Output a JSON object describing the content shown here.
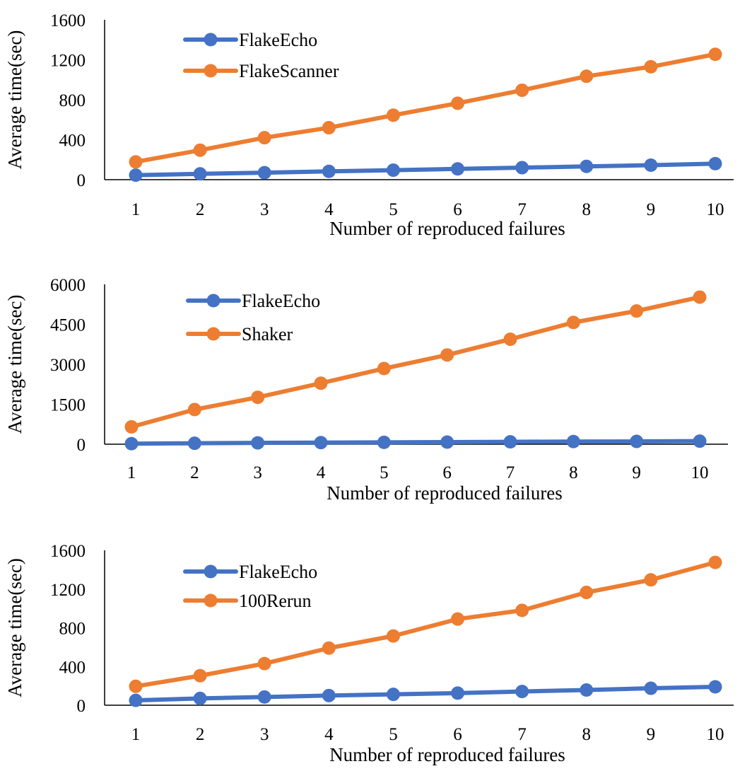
{
  "chart_data": [
    {
      "type": "line",
      "xlabel": "Number of reproduced failures",
      "ylabel": "Average time(sec)",
      "categories": [
        "1",
        "2",
        "3",
        "4",
        "5",
        "6",
        "7",
        "8",
        "9",
        "10"
      ],
      "ylim": [
        0,
        1600
      ],
      "yticks": [
        "0",
        "400",
        "800",
        "1200",
        "1600"
      ],
      "grid": false,
      "legend": "top-left",
      "series": [
        {
          "name": "FlakeEcho",
          "color": "#4472C4",
          "values": [
            45,
            58,
            70,
            83,
            95,
            108,
            120,
            133,
            145,
            160
          ]
        },
        {
          "name": "FlakeScanner",
          "color": "#ED7D31",
          "values": [
            178,
            295,
            420,
            520,
            645,
            765,
            895,
            1035,
            1130,
            1255
          ]
        }
      ]
    },
    {
      "type": "line",
      "xlabel": "Number of reproduced failures",
      "ylabel": "Average time(sec)",
      "categories": [
        "1",
        "2",
        "3",
        "4",
        "5",
        "6",
        "7",
        "8",
        "9",
        "10"
      ],
      "ylim": [
        0,
        6000
      ],
      "yticks": [
        "0",
        "1500",
        "3000",
        "4500",
        "6000"
      ],
      "grid": false,
      "legend": "top-left",
      "series": [
        {
          "name": "FlakeEcho",
          "color": "#4472C4",
          "values": [
            20,
            35,
            50,
            60,
            70,
            80,
            90,
            100,
            105,
            115
          ]
        },
        {
          "name": "Shaker",
          "color": "#ED7D31",
          "values": [
            650,
            1300,
            1760,
            2290,
            2840,
            3350,
            3940,
            4570,
            5000,
            5520
          ]
        }
      ]
    },
    {
      "type": "line",
      "xlabel": "Number of reproduced failures",
      "ylabel": "Average time(sec)",
      "categories": [
        "1",
        "2",
        "3",
        "4",
        "5",
        "6",
        "7",
        "8",
        "9",
        "10"
      ],
      "ylim": [
        0,
        1600
      ],
      "yticks": [
        "0",
        "400",
        "800",
        "1200",
        "1600"
      ],
      "grid": false,
      "legend": "top-left",
      "series": [
        {
          "name": "FlakeEcho",
          "color": "#4472C4",
          "values": [
            50,
            70,
            85,
            100,
            112,
            125,
            142,
            157,
            175,
            190
          ]
        },
        {
          "name": "100Rerun",
          "color": "#ED7D31",
          "values": [
            195,
            305,
            430,
            590,
            715,
            890,
            980,
            1165,
            1295,
            1475
          ]
        }
      ]
    }
  ]
}
